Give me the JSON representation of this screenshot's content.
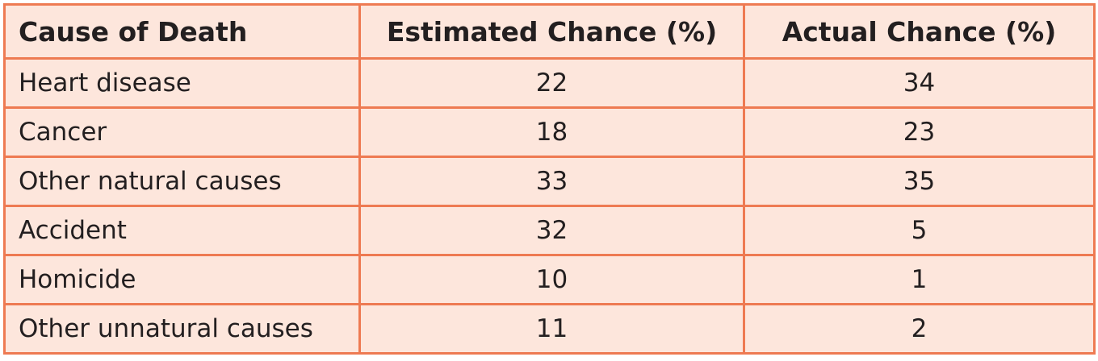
{
  "table": {
    "headers": [
      "Cause of Death",
      "Estimated Chance (%)",
      "Actual Chance (%)"
    ],
    "rows": [
      {
        "cause": "Heart disease",
        "estimated": "22",
        "actual": "34"
      },
      {
        "cause": "Cancer",
        "estimated": "18",
        "actual": "23"
      },
      {
        "cause": "Other natural causes",
        "estimated": "33",
        "actual": "35"
      },
      {
        "cause": "Accident",
        "estimated": "32",
        "actual": "5"
      },
      {
        "cause": "Homicide",
        "estimated": "10",
        "actual": "1"
      },
      {
        "cause": "Other unnatural causes",
        "estimated": "11",
        "actual": "2"
      }
    ]
  },
  "colors": {
    "cell_background": "#fde6dc",
    "border": "#ee7a52",
    "text": "#231f20"
  }
}
